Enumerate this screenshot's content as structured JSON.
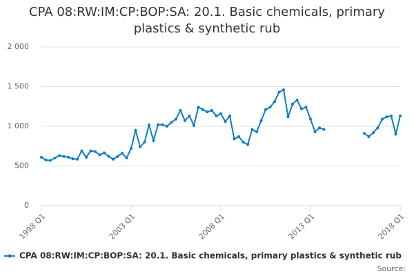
{
  "chart_data": {
    "type": "line",
    "title": "CPA 08:RW:IM:CP:BOP:SA: 20.1. Basic chemicals, primary plastics & synthetic rub",
    "categories": [
      "1998 Q1",
      null,
      null,
      null,
      null,
      null,
      null,
      null,
      null,
      null,
      null,
      null,
      null,
      null,
      null,
      null,
      null,
      null,
      null,
      null,
      "2003 Q1",
      null,
      null,
      null,
      null,
      null,
      null,
      null,
      null,
      null,
      null,
      null,
      null,
      null,
      null,
      null,
      null,
      null,
      null,
      null,
      "2008 Q1",
      null,
      null,
      null,
      null,
      null,
      null,
      null,
      null,
      null,
      null,
      null,
      null,
      null,
      null,
      null,
      null,
      null,
      null,
      null,
      "2013 Q1",
      null,
      null,
      null,
      null,
      null,
      null,
      null,
      null,
      null,
      null,
      null,
      null,
      null,
      null,
      null,
      null,
      null,
      null,
      null,
      "2018 Q1"
    ],
    "series": [
      {
        "name": "CPA 08:RW:IM:CP:BOP:SA: 20.1. Basic chemicals, primary plastics & synthetic rub",
        "color": "#0e7dc2",
        "values": [
          610,
          575,
          570,
          600,
          630,
          620,
          610,
          590,
          585,
          690,
          610,
          690,
          680,
          640,
          665,
          620,
          585,
          620,
          660,
          600,
          720,
          950,
          740,
          800,
          1015,
          820,
          1020,
          1020,
          1000,
          1050,
          1090,
          1200,
          1070,
          1130,
          1010,
          1240,
          1210,
          1180,
          1200,
          1130,
          1160,
          1060,
          1130,
          840,
          870,
          800,
          770,
          960,
          930,
          1070,
          1210,
          1240,
          1310,
          1430,
          1460,
          1120,
          1280,
          1330,
          1220,
          1240,
          1090,
          930,
          980,
          960,
          null,
          null,
          null,
          null,
          null,
          null,
          null,
          null,
          910,
          870,
          920,
          980,
          1090,
          1120,
          1130,
          900,
          1130
        ]
      }
    ],
    "ylim": [
      0,
      2000
    ],
    "yticks": [
      0,
      500,
      {
        "value": 1000,
        "label": "1 000"
      },
      {
        "value": 1500,
        "label": "1 500"
      },
      {
        "value": 2000,
        "label": "2 000"
      }
    ],
    "grid": true,
    "legend": "bottom",
    "source": "Source:"
  }
}
